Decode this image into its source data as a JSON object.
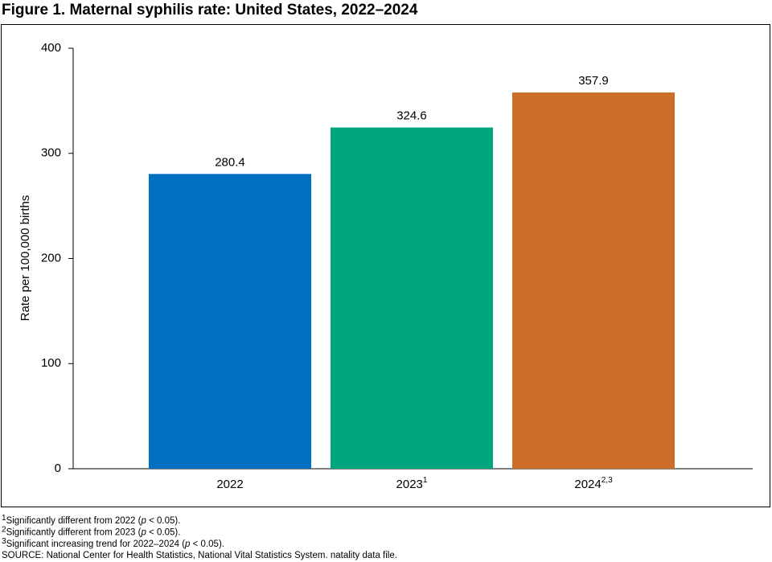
{
  "chart_data": {
    "type": "bar",
    "title": "Figure 1. Maternal syphilis rate: United States, 2022–2024",
    "ylabel": "Rate per 100,000 births",
    "categories": [
      "2022",
      "2023",
      "2024"
    ],
    "category_superscripts": [
      null,
      "1",
      "2,3"
    ],
    "values": [
      280.4,
      324.6,
      357.9
    ],
    "colors": [
      "#0070c0",
      "#00a77e",
      "#cc6e28"
    ],
    "ylim": [
      0,
      400
    ],
    "yticks": [
      0,
      100,
      200,
      300,
      400
    ],
    "grid": false,
    "footnotes": [
      {
        "mark": "1",
        "before": "Significantly different from 2022 (",
        "italic": "p",
        "after": " < 0.05)."
      },
      {
        "mark": "2",
        "before": "Significantly different from 2023 (",
        "italic": "p",
        "after": " < 0.05)."
      },
      {
        "mark": "3",
        "before": "Significant increasing trend for 2022–2024 (",
        "italic": "p",
        "after": " < 0.05)."
      }
    ],
    "source": "SOURCE: National Center for Health Statistics, National Vital Statistics System. natality data file."
  }
}
